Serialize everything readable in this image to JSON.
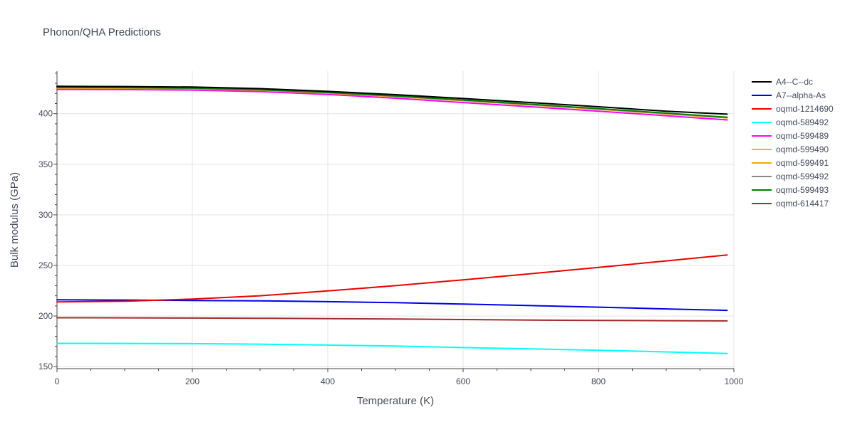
{
  "chart_data": {
    "type": "line",
    "title": "Phonon/QHA Predictions",
    "xlabel": "Temperature (K)",
    "ylabel": "Bulk modulus (GPa)",
    "xlim": [
      0,
      1000
    ],
    "ylim": [
      148,
      442
    ],
    "xticks": [
      0,
      200,
      400,
      600,
      800,
      1000
    ],
    "yticks": [
      150,
      200,
      250,
      300,
      350,
      400
    ],
    "grid": true,
    "legend_position": "right",
    "series": [
      {
        "name": "A4--C--dc",
        "color": "#000000",
        "x": [
          0,
          100,
          200,
          300,
          400,
          500,
          600,
          700,
          800,
          900,
          990
        ],
        "y": [
          427,
          426.8,
          426.3,
          424.8,
          422.0,
          418.8,
          415.0,
          411.0,
          406.8,
          402.5,
          399.5
        ]
      },
      {
        "name": "A7--alpha-As",
        "color": "#0000ee",
        "x": [
          0,
          100,
          200,
          300,
          400,
          500,
          600,
          700,
          800,
          900,
          990
        ],
        "y": [
          216,
          215.8,
          215.4,
          215.0,
          214.2,
          213.2,
          211.8,
          210.3,
          208.8,
          207.0,
          205.6
        ]
      },
      {
        "name": "oqmd-1214690",
        "color": "#ee0000",
        "x": [
          0,
          100,
          200,
          300,
          400,
          500,
          600,
          700,
          800,
          900,
          990
        ],
        "y": [
          214,
          214.6,
          216.8,
          220.0,
          224.8,
          230.0,
          235.8,
          241.8,
          248.0,
          254.5,
          260.3
        ]
      },
      {
        "name": "oqmd-589492",
        "color": "#00ffff",
        "x": [
          0,
          100,
          200,
          300,
          400,
          500,
          600,
          700,
          800,
          900,
          990
        ],
        "y": [
          173,
          172.9,
          172.7,
          172.2,
          171.3,
          170.3,
          168.8,
          167.5,
          166.2,
          164.5,
          163.0
        ]
      },
      {
        "name": "oqmd-599489",
        "color": "#ff00ff",
        "x": [
          0,
          100,
          200,
          300,
          400,
          500,
          600,
          700,
          800,
          900,
          990
        ],
        "y": [
          424,
          423.8,
          423.3,
          421.8,
          419.0,
          415.3,
          411.0,
          406.8,
          402.5,
          398.0,
          393.8
        ]
      },
      {
        "name": "oqmd-599490",
        "color": "#ffb300",
        "x": [
          0,
          100,
          200,
          300,
          400,
          500,
          600,
          700,
          800,
          900,
          990
        ],
        "y": [
          425.5,
          425.3,
          424.8,
          423.3,
          420.5,
          417.0,
          413.0,
          408.8,
          404.5,
          400.0,
          396.0
        ]
      },
      {
        "name": "oqmd-599491",
        "color": "#ffa500",
        "x": [
          0,
          100,
          200,
          300,
          400,
          500,
          600,
          700,
          800,
          900,
          990
        ],
        "y": [
          425.3,
          425.1,
          424.6,
          423.1,
          420.3,
          416.8,
          412.8,
          408.6,
          404.3,
          399.8,
          395.8
        ]
      },
      {
        "name": "oqmd-599492",
        "color": "#888888",
        "x": [
          0,
          100,
          200,
          300,
          400,
          500,
          600,
          700,
          800,
          900,
          990
        ],
        "y": [
          425.8,
          425.6,
          425.1,
          423.6,
          420.8,
          417.3,
          413.3,
          409.1,
          404.8,
          400.3,
          396.3
        ]
      },
      {
        "name": "oqmd-599493",
        "color": "#008000",
        "x": [
          0,
          100,
          200,
          300,
          400,
          500,
          600,
          700,
          800,
          900,
          990
        ],
        "y": [
          426,
          425.8,
          425.3,
          423.8,
          421.0,
          417.5,
          413.5,
          409.3,
          405.0,
          400.5,
          396.5
        ]
      },
      {
        "name": "oqmd-614417",
        "color": "#a52a2a",
        "x": [
          0,
          100,
          200,
          300,
          400,
          500,
          600,
          700,
          800,
          900,
          990
        ],
        "y": [
          198.3,
          198.2,
          198.0,
          197.8,
          197.4,
          197.0,
          196.5,
          196.0,
          195.7,
          195.4,
          195.2
        ]
      }
    ]
  }
}
